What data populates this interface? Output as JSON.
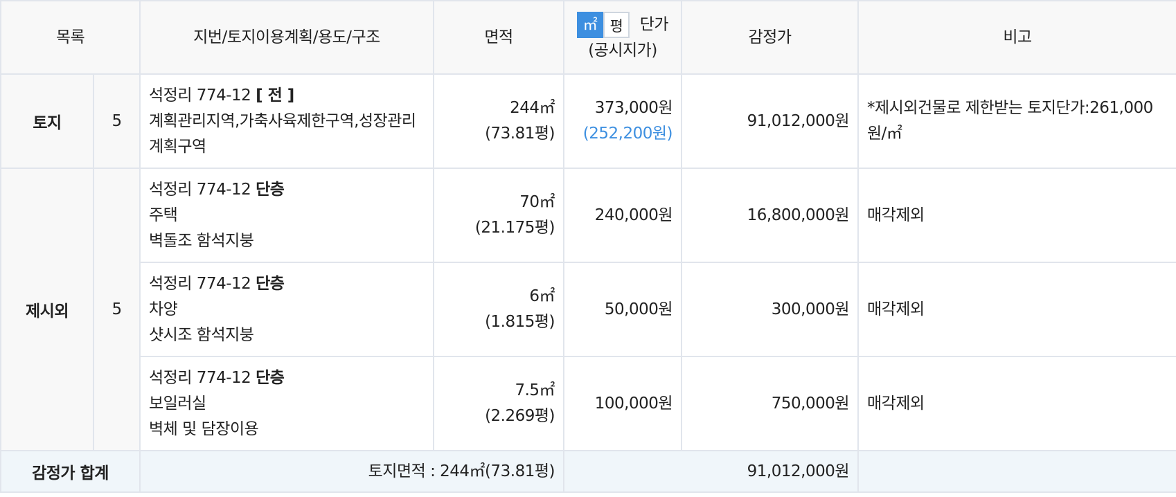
{
  "header": {
    "list": "목록",
    "lot": "지번/토지이용계획/용도/구조",
    "area": "면적",
    "unit_sqm": "㎡",
    "unit_pyeong": "평",
    "unit_price": "단가",
    "unit_price_sub": "(공시지가)",
    "appraisal": "감정가",
    "remarks": "비고"
  },
  "land": {
    "category": "토지",
    "count": "5",
    "row": {
      "address": "석정리 774-12",
      "type": "[ 전 ]",
      "plan": "계획관리지역,가축사육제한구역,성장관리계획구역",
      "area": "244㎡",
      "area_pyeong": "(73.81평)",
      "unit_price": "373,000원",
      "public_price": "(252,200원)",
      "appraisal": "91,012,000원",
      "remarks": "*제시외건물로 제한받는 토지단가:261,000원/㎡"
    }
  },
  "extra": {
    "category": "제시외",
    "count": "5",
    "rows": [
      {
        "address": "석정리 774-12",
        "floor": "단층",
        "use": "주택",
        "structure": "벽돌조 함석지붕",
        "area": "70㎡",
        "area_pyeong": "(21.175평)",
        "unit_price": "240,000원",
        "appraisal": "16,800,000원",
        "remarks": "매각제외"
      },
      {
        "address": "석정리 774-12",
        "floor": "단층",
        "use": "차양",
        "structure": "샷시조 함석지붕",
        "area": "6㎡",
        "area_pyeong": "(1.815평)",
        "unit_price": "50,000원",
        "appraisal": "300,000원",
        "remarks": "매각제외"
      },
      {
        "address": "석정리 774-12",
        "floor": "단층",
        "use": "보일러실",
        "structure": "벽체 및 담장이용",
        "area": "7.5㎡",
        "area_pyeong": "(2.269평)",
        "unit_price": "100,000원",
        "appraisal": "750,000원",
        "remarks": "매각제외"
      }
    ]
  },
  "total": {
    "label": "감정가 합계",
    "land_area": "토지면적 : 244㎡(73.81평)",
    "appraisal": "91,012,000원"
  },
  "colors": {
    "header_bg": "#f8f8f8",
    "border": "#e1e5ec",
    "total_bg": "#f0f6fa",
    "accent_blue": "#3d8fe0"
  }
}
